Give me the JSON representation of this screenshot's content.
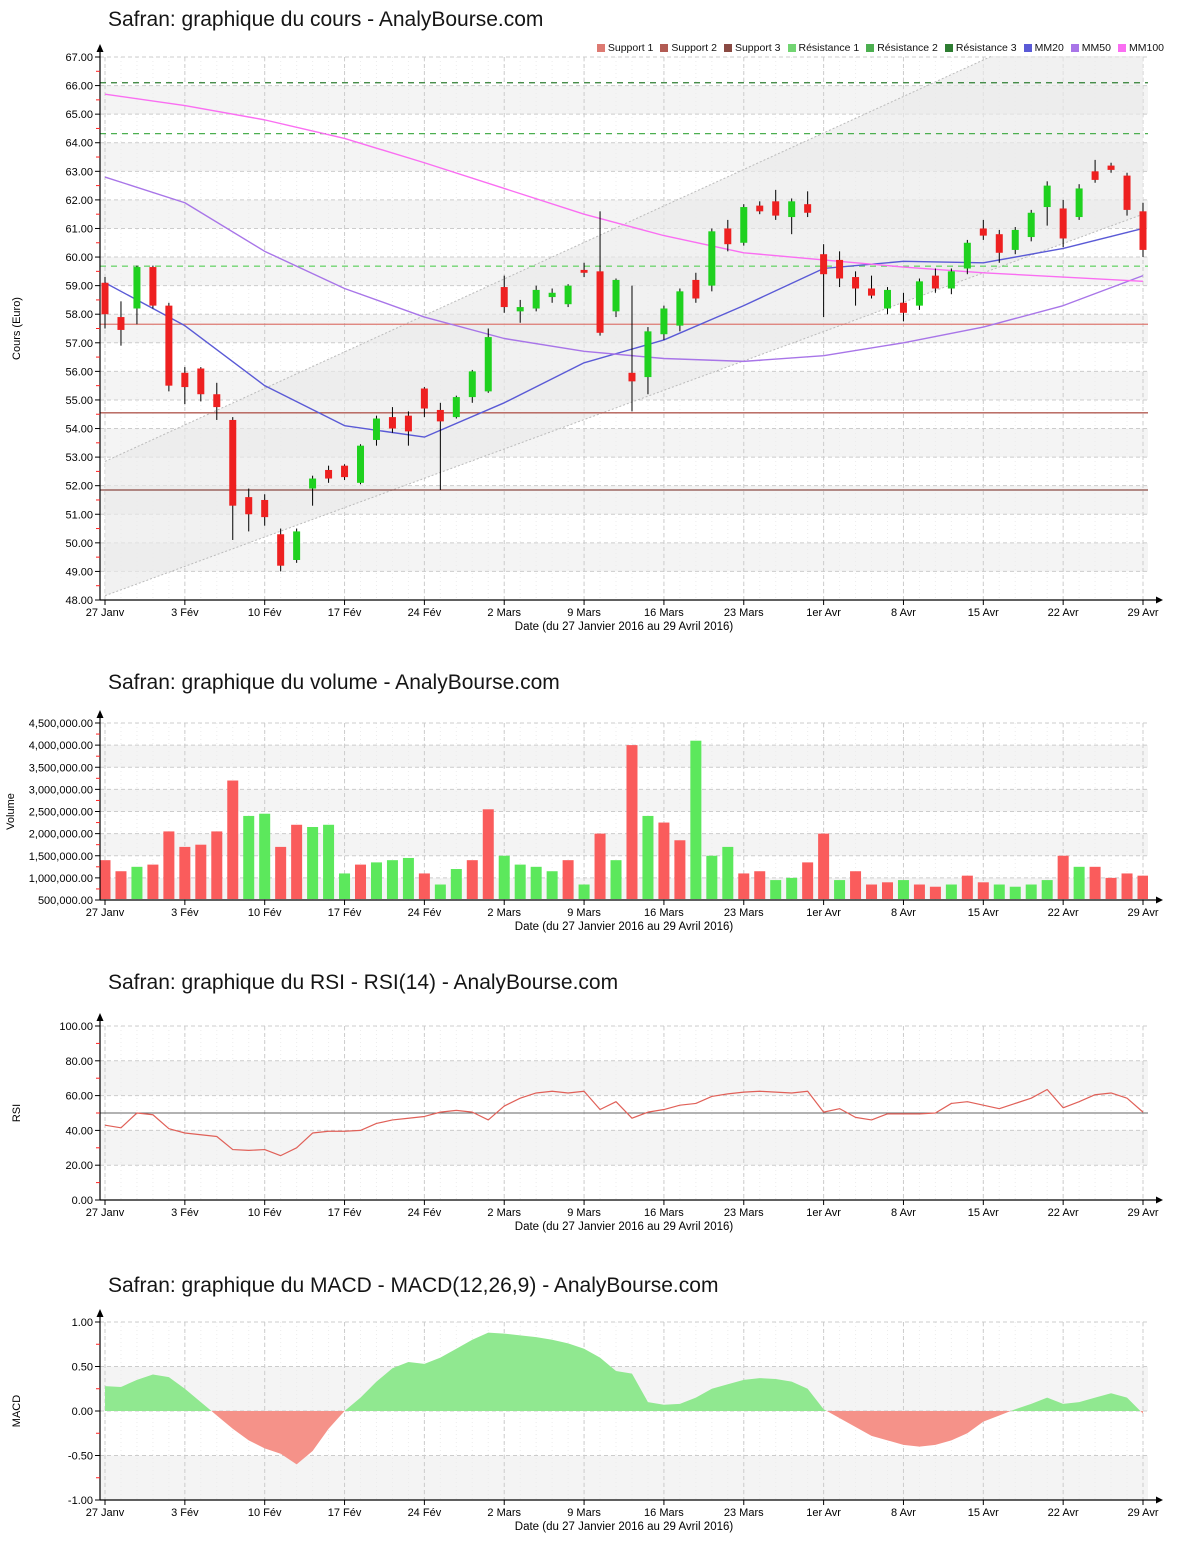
{
  "page": {
    "background": "#ffffff"
  },
  "x_axis": {
    "labels": [
      "27 Janv",
      "3 Fév",
      "10 Fév",
      "17 Fév",
      "24 Fév",
      "2 Mars",
      "9 Mars",
      "16 Mars",
      "23 Mars",
      "1er Avr",
      "8 Avr",
      "15 Avr",
      "22 Avr",
      "29 Avr"
    ],
    "label_indices": [
      0,
      5,
      10,
      15,
      20,
      25,
      30,
      35,
      40,
      45,
      50,
      55,
      60,
      65
    ],
    "title": "Date (du 27 Janvier 2016 au 29 Avril 2016)"
  },
  "chart_data": [
    {
      "id": "price",
      "type": "candlestick",
      "title": "Safran: graphique du cours - AnalyBourse.com",
      "ylabel": "Cours (Euro)",
      "xlabel": "Date (du 27 Janvier 2016 au 29 Avril 2016)",
      "ylim": [
        48,
        67
      ],
      "ytick_values": [
        48,
        49,
        50,
        51,
        52,
        53,
        54,
        55,
        56,
        57,
        58,
        59,
        60,
        61,
        62,
        63,
        64,
        65,
        66,
        67
      ],
      "ytick_labels": [
        "48.00",
        "49.00",
        "50.00",
        "51.00",
        "52.00",
        "53.00",
        "54.00",
        "55.00",
        "56.00",
        "57.00",
        "58.00",
        "59.00",
        "60.00",
        "61.00",
        "62.00",
        "63.00",
        "64.00",
        "65.00",
        "66.00",
        "67.00"
      ],
      "bands": [
        [
          49,
          50
        ],
        [
          51,
          52
        ],
        [
          53,
          54
        ],
        [
          55,
          56
        ],
        [
          57,
          58
        ],
        [
          59,
          60
        ],
        [
          61,
          62
        ],
        [
          63,
          64
        ],
        [
          65,
          66
        ]
      ],
      "legend": [
        {
          "label": "Support 1",
          "color": "#dd7a72"
        },
        {
          "label": "Support 2",
          "color": "#b25b53"
        },
        {
          "label": "Support 3",
          "color": "#8a4a43"
        },
        {
          "label": "Résistance 1",
          "color": "#72d572"
        },
        {
          "label": "Résistance 2",
          "color": "#4caf50"
        },
        {
          "label": "Résistance 3",
          "color": "#2e7d32"
        },
        {
          "label": "MM20",
          "color": "#5a5ad6"
        },
        {
          "label": "MM50",
          "color": "#a875e8"
        },
        {
          "label": "MM100",
          "color": "#fa6ef2"
        }
      ],
      "supports": [
        {
          "name": "Support 1",
          "value": 57.65,
          "color": "#dd7a72"
        },
        {
          "name": "Support 2",
          "value": 54.55,
          "color": "#b25b53"
        },
        {
          "name": "Support 3",
          "value": 51.85,
          "color": "#8a4a43"
        }
      ],
      "resistances": [
        {
          "name": "Résistance 1",
          "value": 59.68,
          "color": "#72d572"
        },
        {
          "name": "Résistance 2",
          "value": 64.32,
          "color": "#4caf50"
        },
        {
          "name": "Résistance 3",
          "value": 66.1,
          "color": "#2e7d32"
        }
      ],
      "moving_averages": [
        {
          "name": "MM20",
          "color": "#5a5ad6",
          "anchor_idx": [
            0,
            5,
            10,
            15,
            20,
            25,
            30,
            35,
            40,
            45,
            50,
            55,
            60,
            65
          ],
          "anchors": [
            59.1,
            57.6,
            55.5,
            54.1,
            53.7,
            54.9,
            56.3,
            57.1,
            58.3,
            59.6,
            59.85,
            59.8,
            60.3,
            61.0
          ]
        },
        {
          "name": "MM50",
          "color": "#a875e8",
          "anchor_idx": [
            0,
            5,
            10,
            15,
            20,
            25,
            30,
            35,
            40,
            45,
            50,
            55,
            60,
            65
          ],
          "anchors": [
            62.8,
            61.9,
            60.2,
            58.9,
            57.9,
            57.15,
            56.7,
            56.45,
            56.35,
            56.55,
            57.0,
            57.55,
            58.3,
            59.35
          ]
        },
        {
          "name": "MM100",
          "color": "#fa6ef2",
          "anchor_idx": [
            0,
            5,
            10,
            15,
            20,
            25,
            30,
            35,
            40,
            45,
            50,
            55,
            60,
            65
          ],
          "anchors": [
            65.7,
            65.3,
            64.8,
            64.15,
            63.3,
            62.4,
            61.5,
            60.75,
            60.15,
            59.9,
            59.65,
            59.45,
            59.3,
            59.15
          ]
        }
      ],
      "channel": {
        "upper_start": 52.85,
        "upper_end": 69.45,
        "lower_start": 48.15,
        "lower_end": 61.5,
        "line_color": "#bbbbbb",
        "fill_color": "#e9e9e9"
      },
      "candles": [
        [
          59.1,
          59.3,
          57.5,
          58.0
        ],
        [
          57.9,
          58.45,
          56.9,
          57.45
        ],
        [
          58.2,
          59.7,
          57.65,
          59.65
        ],
        [
          59.65,
          59.7,
          58.2,
          58.3
        ],
        [
          58.3,
          58.4,
          55.3,
          55.5
        ],
        [
          55.95,
          56.15,
          54.85,
          55.45
        ],
        [
          56.1,
          56.15,
          54.95,
          55.2
        ],
        [
          55.2,
          55.6,
          54.3,
          54.75
        ],
        [
          54.3,
          54.4,
          50.1,
          51.3
        ],
        [
          51.6,
          51.9,
          50.4,
          51.0
        ],
        [
          51.5,
          51.7,
          50.6,
          50.9
        ],
        [
          50.3,
          50.5,
          49.0,
          49.2
        ],
        [
          49.4,
          50.5,
          49.3,
          50.4
        ],
        [
          51.9,
          52.35,
          51.3,
          52.25
        ],
        [
          52.55,
          52.7,
          52.1,
          52.25
        ],
        [
          52.7,
          52.75,
          52.2,
          52.3
        ],
        [
          52.1,
          53.45,
          52.05,
          53.4
        ],
        [
          53.6,
          54.45,
          53.4,
          54.35
        ],
        [
          54.4,
          54.75,
          53.85,
          54.0
        ],
        [
          54.45,
          54.6,
          53.4,
          53.9
        ],
        [
          55.4,
          55.45,
          54.4,
          54.7
        ],
        [
          54.65,
          54.9,
          51.85,
          54.25
        ],
        [
          54.4,
          55.15,
          54.35,
          55.1
        ],
        [
          55.1,
          56.05,
          54.9,
          56.0
        ],
        [
          55.3,
          57.5,
          55.25,
          57.2
        ],
        [
          58.95,
          59.35,
          58.05,
          58.25
        ],
        [
          58.1,
          58.5,
          57.7,
          58.25
        ],
        [
          58.2,
          59.0,
          58.1,
          58.85
        ],
        [
          58.6,
          58.9,
          58.4,
          58.75
        ],
        [
          58.35,
          59.05,
          58.25,
          59.0
        ],
        [
          59.55,
          59.8,
          59.3,
          59.45
        ],
        [
          59.5,
          61.6,
          57.25,
          57.35
        ],
        [
          58.1,
          59.25,
          57.9,
          59.2
        ],
        [
          55.95,
          59.0,
          54.6,
          55.65
        ],
        [
          55.8,
          57.55,
          55.2,
          57.4
        ],
        [
          57.3,
          58.3,
          57.1,
          58.2
        ],
        [
          57.6,
          58.9,
          57.4,
          58.8
        ],
        [
          59.2,
          59.45,
          58.4,
          58.55
        ],
        [
          59.0,
          61.0,
          58.8,
          60.9
        ],
        [
          61.0,
          61.3,
          60.2,
          60.45
        ],
        [
          60.5,
          61.85,
          60.4,
          61.75
        ],
        [
          61.8,
          61.95,
          61.5,
          61.6
        ],
        [
          61.95,
          62.35,
          61.3,
          61.45
        ],
        [
          61.4,
          62.05,
          60.8,
          61.95
        ],
        [
          61.85,
          62.3,
          61.4,
          61.55
        ],
        [
          60.1,
          60.45,
          57.9,
          59.4
        ],
        [
          59.9,
          60.2,
          58.95,
          59.25
        ],
        [
          59.3,
          59.5,
          58.3,
          58.9
        ],
        [
          58.9,
          59.35,
          58.55,
          58.65
        ],
        [
          58.2,
          58.95,
          58.0,
          58.85
        ],
        [
          58.4,
          58.75,
          57.75,
          58.05
        ],
        [
          58.3,
          59.25,
          58.15,
          59.15
        ],
        [
          59.35,
          59.6,
          58.75,
          58.9
        ],
        [
          58.9,
          59.6,
          58.7,
          59.5
        ],
        [
          59.6,
          60.6,
          59.4,
          60.5
        ],
        [
          61.0,
          61.3,
          60.6,
          60.75
        ],
        [
          60.8,
          60.95,
          59.8,
          60.15
        ],
        [
          60.25,
          61.05,
          60.1,
          60.95
        ],
        [
          60.7,
          61.65,
          60.55,
          61.55
        ],
        [
          61.75,
          62.65,
          61.1,
          62.5
        ],
        [
          61.7,
          62.0,
          60.35,
          60.65
        ],
        [
          61.4,
          62.55,
          61.3,
          62.4
        ],
        [
          63.0,
          63.4,
          62.6,
          62.7
        ],
        [
          63.2,
          63.3,
          62.95,
          63.05
        ],
        [
          62.85,
          62.95,
          61.45,
          61.65
        ],
        [
          61.6,
          61.9,
          60.0,
          60.25
        ]
      ],
      "style": {
        "up_color": "#1fd11f",
        "down_color": "#ee2020",
        "wick_color": "#000000"
      }
    },
    {
      "id": "volume",
      "type": "bar",
      "title": "Safran: graphique du volume - AnalyBourse.com",
      "ylabel": "Volume",
      "xlabel": "Date (du 27 Janvier 2016 au 29 Avril 2016)",
      "ylim": [
        500000,
        4500000
      ],
      "ytick_values": [
        500000,
        1000000,
        1500000,
        2000000,
        2500000,
        3000000,
        3500000,
        4000000,
        4500000
      ],
      "ytick_labels": [
        "500,000.00",
        "1,000,000.00",
        "1,500,000.00",
        "2,000,000.00",
        "2,500,000.00",
        "3,000,000.00",
        "3,500,000.00",
        "4,000,000.00",
        "4,500,000.00"
      ],
      "bands": [
        [
          500000,
          1000000
        ],
        [
          1500000,
          2000000
        ],
        [
          2500000,
          3000000
        ],
        [
          3500000,
          4000000
        ]
      ],
      "values": [
        1400000,
        1150000,
        1250000,
        1300000,
        2050000,
        1700000,
        1750000,
        2050000,
        3200000,
        2400000,
        2450000,
        1700000,
        2200000,
        2150000,
        2200000,
        1100000,
        1300000,
        1350000,
        1400000,
        1450000,
        1100000,
        850000,
        1200000,
        1400000,
        2550000,
        1500000,
        1300000,
        1250000,
        1150000,
        1400000,
        850000,
        2000000,
        1400000,
        4000000,
        2400000,
        2250000,
        1850000,
        4100000,
        1500000,
        1700000,
        1100000,
        1150000,
        950000,
        1000000,
        1350000,
        2000000,
        950000,
        1150000,
        850000,
        900000,
        950000,
        850000,
        800000,
        850000,
        1050000,
        900000,
        850000,
        800000,
        850000,
        950000,
        1500000,
        1250000,
        1250000,
        1000000,
        1100000,
        1050000
      ],
      "updown": "ddudddddduudduuuduuuduudduuuududududduuudduudduddduddudduuuududddd",
      "style": {
        "up_color": "#5ce85c",
        "down_color": "#fa5c5c"
      }
    },
    {
      "id": "rsi",
      "type": "line",
      "title": "Safran: graphique du RSI - RSI(14) - AnalyBourse.com",
      "ylabel": "RSI",
      "xlabel": "Date (du 27 Janvier 2016 au 29 Avril 2016)",
      "ylim": [
        0,
        100
      ],
      "ytick_values": [
        0,
        20,
        40,
        60,
        80,
        100
      ],
      "ytick_labels": [
        "0.00",
        "20.00",
        "40.00",
        "60.00",
        "80.00",
        "100.00"
      ],
      "bands": [
        [
          20,
          40
        ],
        [
          60,
          80
        ]
      ],
      "midline": 50,
      "values": [
        43,
        41.5,
        50,
        49,
        41,
        38.5,
        37.5,
        36.5,
        29,
        28.5,
        29,
        25.5,
        30,
        38.5,
        39.5,
        39.5,
        40,
        44,
        46,
        47,
        48,
        50.5,
        51.5,
        50.5,
        46,
        54,
        58.5,
        61.5,
        62.5,
        61.5,
        62.5,
        52,
        56.5,
        47,
        50.5,
        52,
        54.5,
        55.5,
        59.5,
        61,
        62,
        62.5,
        62,
        61.5,
        62.5,
        50.5,
        52.5,
        47.5,
        46,
        49.5,
        49.5,
        49.5,
        50,
        55.5,
        56.5,
        54.5,
        52.5,
        55.5,
        58.5,
        63.5,
        53,
        56.5,
        60.5,
        61.5,
        58.5,
        50.5
      ],
      "style": {
        "line_color": "#e06058",
        "midline_color": "#666666"
      }
    },
    {
      "id": "macd",
      "type": "area",
      "title": "Safran: graphique du MACD - MACD(12,26,9) - AnalyBourse.com",
      "ylabel": "MACD",
      "xlabel": "Date (du 27 Janvier 2016 au 29 Avril 2016)",
      "ylim": [
        -1,
        1
      ],
      "ytick_values": [
        -1,
        -0.5,
        0,
        0.5,
        1
      ],
      "ytick_labels": [
        "-1.00",
        "-0.50",
        "0.00",
        "0.50",
        "1.00"
      ],
      "bands": [
        [
          -1,
          -0.5
        ],
        [
          0,
          0.5
        ]
      ],
      "values": [
        0.28,
        0.27,
        0.35,
        0.41,
        0.38,
        0.25,
        0.1,
        -0.05,
        -0.2,
        -0.33,
        -0.42,
        -0.48,
        -0.6,
        -0.45,
        -0.2,
        0.0,
        0.15,
        0.33,
        0.48,
        0.55,
        0.53,
        0.6,
        0.7,
        0.8,
        0.88,
        0.87,
        0.85,
        0.83,
        0.8,
        0.76,
        0.7,
        0.6,
        0.45,
        0.42,
        0.1,
        0.07,
        0.08,
        0.15,
        0.25,
        0.3,
        0.35,
        0.37,
        0.36,
        0.33,
        0.25,
        0.02,
        -0.08,
        -0.18,
        -0.28,
        -0.33,
        -0.38,
        -0.4,
        -0.38,
        -0.33,
        -0.25,
        -0.12,
        -0.05,
        0.02,
        0.08,
        0.15,
        0.08,
        0.1,
        0.15,
        0.2,
        0.15,
        -0.03
      ],
      "style": {
        "pos_color": "#90e890",
        "neg_color": "#f59289"
      }
    }
  ]
}
